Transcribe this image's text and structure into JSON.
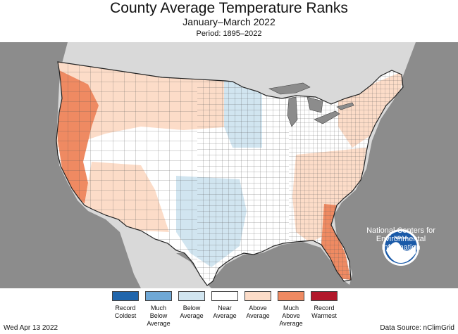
{
  "header": {
    "title": "County Average Temperature Ranks",
    "subtitle": "January–March 2022",
    "period": "Period: 1895–2022"
  },
  "legend": {
    "items": [
      {
        "label": "Record\nColdest",
        "color": "#2166ac"
      },
      {
        "label": "Much\nBelow\nAverage",
        "color": "#6fa8d6"
      },
      {
        "label": "Below\nAverage",
        "color": "#d1e5f0"
      },
      {
        "label": "Near\nAverage",
        "color": "#ffffff"
      },
      {
        "label": "Above\nAverage",
        "color": "#fcdcc8"
      },
      {
        "label": "Much\nAbove\nAverage",
        "color": "#ef8a62"
      },
      {
        "label": "Record\nWarmest",
        "color": "#b2182b"
      }
    ]
  },
  "logo": {
    "text": "NOAA",
    "caption": "National Centers for\nEnvironmental\nInformation"
  },
  "footer": {
    "date": "Wed Apr 13 2022",
    "source": "Data Source: nClimGrid"
  },
  "colors": {
    "background_land_outside": "#d9d9d9",
    "ocean": "#8c8c8c",
    "lakes": "#8c8c8c",
    "near": "#ffffff",
    "above": "#fcdcc8",
    "much_above": "#ef8a62",
    "below": "#d1e5f0"
  }
}
